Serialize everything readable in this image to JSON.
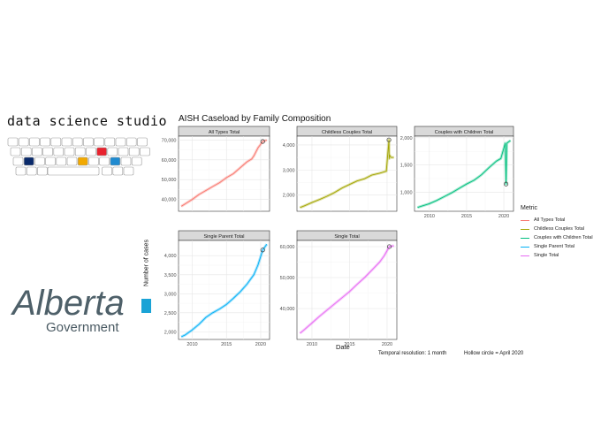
{
  "branding": {
    "studio_name": "data science studio",
    "logo_wordmark": "Alberta",
    "logo_subtitle": "Government",
    "keyboard_accent_colors": [
      "#0a2a6b",
      "#e8222e",
      "#f2a900",
      "#1f8ad0"
    ]
  },
  "chart_data": {
    "type": "line",
    "title": "AISH Caseload by Family Composition",
    "xlabel": "Date",
    "ylabel": "Number of cases",
    "legend_title": "Metric",
    "legend_position": "right",
    "grid": true,
    "scales": "free_y",
    "annotations": [
      "Temporal resolution: 1 month",
      "Hollow circle = April 2020"
    ],
    "x_ticks": [
      2010,
      2015,
      2020
    ],
    "series": [
      {
        "name": "All Types Total",
        "facet": "All Types Total",
        "color": "#f8766d",
        "ylim": [
          34000,
          72000
        ],
        "y_ticks": [
          40000,
          50000,
          60000,
          70000
        ],
        "y_tick_labels": [
          "40,000",
          "50,000",
          "60,000",
          "70,000"
        ],
        "x": [
          2008.4,
          2009,
          2010,
          2011,
          2012,
          2013,
          2014,
          2015,
          2016,
          2017,
          2018,
          2018.7,
          2019,
          2019.6,
          2020.3,
          2020.9
        ],
        "y": [
          36500,
          37800,
          40000,
          42500,
          44500,
          46500,
          48500,
          51000,
          53000,
          56000,
          59000,
          60500,
          62000,
          66000,
          69300,
          70000
        ],
        "highlight": {
          "x": 2020.3,
          "y": 69300
        }
      },
      {
        "name": "Childless Couples Total",
        "facet": "Childless Couples Total",
        "color": "#a3a500",
        "ylim": [
          1350,
          4350
        ],
        "y_ticks": [
          2000,
          3000,
          4000
        ],
        "y_tick_labels": [
          "2,000",
          "3,000",
          "4,000"
        ],
        "x": [
          2008.4,
          2009,
          2010,
          2011,
          2012,
          2013,
          2014,
          2015,
          2016,
          2017,
          2018,
          2019,
          2019.9,
          2020.25,
          2020.28,
          2020.33,
          2020.5,
          2020.9
        ],
        "y": [
          1500,
          1570,
          1700,
          1820,
          1950,
          2100,
          2280,
          2420,
          2560,
          2650,
          2800,
          2870,
          2950,
          4200,
          3450,
          3600,
          3500,
          3500
        ],
        "highlight": {
          "x": 2020.25,
          "y": 4200
        }
      },
      {
        "name": "Couples with Children Total",
        "facet": "Couples with Children Total",
        "color": "#00bf7d",
        "ylim": [
          650,
          2030
        ],
        "y_ticks": [
          1000,
          1500,
          2000
        ],
        "y_tick_labels": [
          "1,000",
          "1,500",
          "2,000"
        ],
        "x": [
          2008.4,
          2009,
          2010,
          2011,
          2012,
          2013,
          2014,
          2015,
          2016,
          2017,
          2018,
          2019,
          2019.6,
          2020.2,
          2020.3,
          2020.4,
          2020.9
        ],
        "y": [
          720,
          745,
          790,
          850,
          920,
          990,
          1070,
          1150,
          1220,
          1320,
          1450,
          1570,
          1620,
          1900,
          1150,
          1900,
          1950
        ],
        "highlight": {
          "x": 2020.3,
          "y": 1150
        }
      },
      {
        "name": "Single Parent Total",
        "facet": "Single Parent Total",
        "color": "#00b0f6",
        "ylim": [
          1800,
          4400
        ],
        "y_ticks": [
          2000,
          2500,
          3000,
          3500,
          4000
        ],
        "y_tick_labels": [
          "2,000",
          "2,500",
          "3,000",
          "3,500",
          "4,000"
        ],
        "x": [
          2008.4,
          2009,
          2010,
          2011,
          2012,
          2013,
          2014,
          2015,
          2016,
          2017,
          2018,
          2019,
          2019.6,
          2020.3,
          2020.9
        ],
        "y": [
          1870,
          1920,
          2050,
          2200,
          2380,
          2500,
          2600,
          2720,
          2880,
          3050,
          3250,
          3500,
          3750,
          4150,
          4300
        ],
        "highlight": {
          "x": 2020.3,
          "y": 4150
        }
      },
      {
        "name": "Single Total",
        "facet": "Single Total",
        "color": "#e76bf3",
        "ylim": [
          30000,
          62000
        ],
        "y_ticks": [
          40000,
          50000,
          60000
        ],
        "y_tick_labels": [
          "40,000",
          "50,000",
          "60,000"
        ],
        "x": [
          2008.4,
          2009,
          2010,
          2011,
          2012,
          2013,
          2014,
          2015,
          2016,
          2017,
          2018,
          2019,
          2019.6,
          2020.3,
          2020.9
        ],
        "y": [
          32000,
          33200,
          35300,
          37500,
          39500,
          41500,
          43500,
          45500,
          47800,
          50000,
          52500,
          55000,
          57000,
          60000,
          60300
        ],
        "highlight": {
          "x": 2020.3,
          "y": 60000
        }
      }
    ]
  }
}
